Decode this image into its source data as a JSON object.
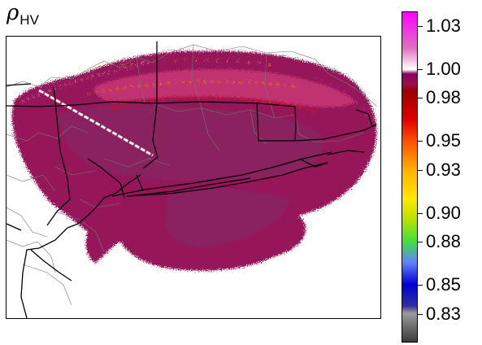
{
  "title": {
    "symbol": "ρ",
    "subscript": "HV"
  },
  "colorbar": {
    "min": 0.81,
    "max": 1.04,
    "tick_labels": [
      "1.03",
      "1.00",
      "0.98",
      "0.95",
      "0.93",
      "0.90",
      "0.88",
      "0.85",
      "0.83"
    ],
    "stops": [
      {
        "value": 0.81,
        "color": "#3a3a3a"
      },
      {
        "value": 0.83,
        "color": "#9a9a9a"
      },
      {
        "value": 0.835,
        "color": "#3030a0"
      },
      {
        "value": 0.85,
        "color": "#0000d0"
      },
      {
        "value": 0.865,
        "color": "#6080ff"
      },
      {
        "value": 0.88,
        "color": "#40e040"
      },
      {
        "value": 0.895,
        "color": "#b8e000"
      },
      {
        "value": 0.91,
        "color": "#ffe800"
      },
      {
        "value": 0.93,
        "color": "#ffb000"
      },
      {
        "value": 0.95,
        "color": "#ff5000"
      },
      {
        "value": 0.965,
        "color": "#e00000"
      },
      {
        "value": 0.985,
        "color": "#9a0000"
      },
      {
        "value": 0.99,
        "color": "#9a1050"
      },
      {
        "value": 0.997,
        "color": "#8a0060"
      },
      {
        "value": 1.0,
        "color": "#ffffff"
      },
      {
        "value": 1.015,
        "color": "#e070c0"
      },
      {
        "value": 1.04,
        "color": "#ff00ff"
      }
    ]
  },
  "colors": {
    "echo_main": "#96145a",
    "echo_dark": "#800a46",
    "echo_core": "#8a2060",
    "echo_high": "#c03070",
    "echo_red": "#d81020",
    "echo_orange": "#ff8800",
    "echo_yellow": "#ffe000",
    "echo_pink": "#f2a0d8",
    "echo_magenta": "#ff40ff",
    "borders": "#000000",
    "counties": "#777777"
  }
}
